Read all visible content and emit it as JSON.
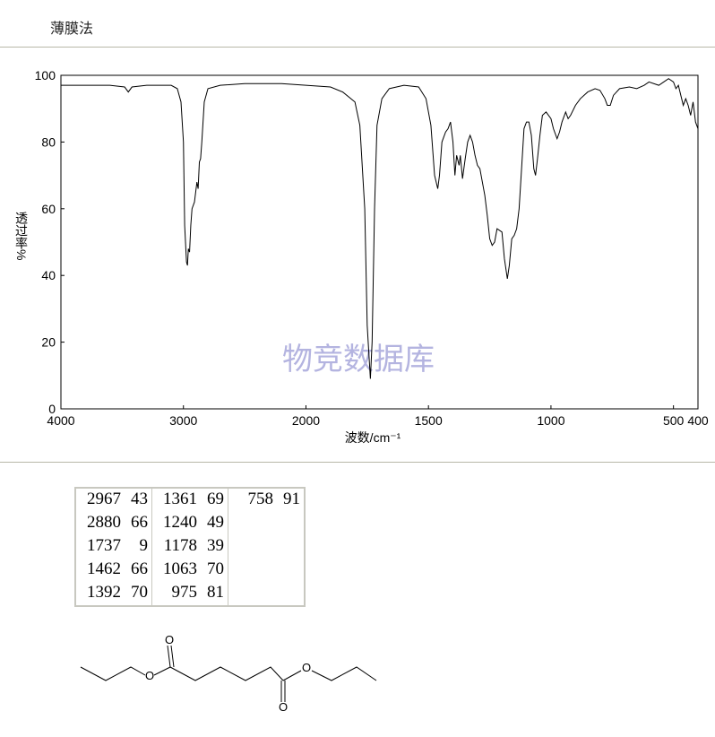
{
  "header": {
    "title": "薄膜法"
  },
  "chart_data": {
    "type": "line",
    "xlabel": "波数/cm⁻¹",
    "ylabel": "透过率%",
    "watermark": "物竞数据库",
    "xlim": [
      4000,
      400
    ],
    "x_scale_break": 2000,
    "xticks": [
      4000,
      3000,
      2000,
      1500,
      1000,
      500,
      400
    ],
    "ylim": [
      0,
      100
    ],
    "yticks": [
      0,
      20,
      40,
      60,
      80,
      100
    ],
    "color": "#000000",
    "grid": false,
    "x": [
      4000,
      3800,
      3600,
      3480,
      3450,
      3420,
      3300,
      3100,
      3050,
      3020,
      3000,
      2990,
      2975,
      2967,
      2960,
      2950,
      2940,
      2930,
      2910,
      2890,
      2880,
      2870,
      2860,
      2850,
      2830,
      2800,
      2700,
      2500,
      2200,
      2000,
      1900,
      1850,
      1800,
      1780,
      1760,
      1750,
      1737,
      1730,
      1720,
      1710,
      1690,
      1660,
      1600,
      1540,
      1510,
      1490,
      1475,
      1462,
      1455,
      1445,
      1430,
      1420,
      1410,
      1400,
      1392,
      1385,
      1375,
      1370,
      1361,
      1350,
      1340,
      1330,
      1320,
      1310,
      1300,
      1290,
      1280,
      1270,
      1260,
      1250,
      1240,
      1230,
      1220,
      1200,
      1190,
      1178,
      1170,
      1160,
      1150,
      1140,
      1130,
      1120,
      1110,
      1100,
      1090,
      1080,
      1070,
      1063,
      1055,
      1045,
      1035,
      1020,
      1000,
      990,
      975,
      965,
      955,
      940,
      930,
      920,
      900,
      880,
      850,
      820,
      800,
      780,
      770,
      758,
      745,
      720,
      680,
      650,
      620,
      600,
      560,
      540,
      520,
      500,
      490,
      480,
      470,
      460,
      450,
      440,
      430,
      420,
      410,
      400
    ],
    "values": [
      97,
      97,
      97,
      96.5,
      95,
      96.5,
      97,
      97,
      96,
      92,
      80,
      55,
      44,
      43,
      48,
      47,
      55,
      60,
      62,
      68,
      66,
      74,
      75,
      80,
      92,
      96,
      97,
      97.5,
      97.5,
      97,
      96.5,
      95,
      92,
      85,
      60,
      25,
      9,
      20,
      60,
      85,
      93,
      96,
      97,
      96.5,
      93,
      85,
      70,
      66,
      70,
      80,
      83,
      84,
      86,
      80,
      70,
      76,
      73,
      76,
      69,
      75,
      80,
      82,
      80,
      76,
      73,
      72,
      68,
      64,
      58,
      51,
      49,
      50,
      54,
      53,
      45,
      39,
      43,
      51,
      52,
      54,
      60,
      72,
      84,
      86,
      86,
      82,
      72,
      70,
      75,
      82,
      88,
      89,
      87,
      84,
      81,
      83,
      86,
      89,
      87,
      88,
      91,
      93,
      95,
      96,
      95.5,
      93,
      91,
      91,
      94,
      96,
      96.5,
      96,
      97,
      98,
      97,
      98,
      99,
      98,
      96,
      97,
      94,
      91,
      93,
      91,
      88,
      92,
      86,
      84
    ]
  },
  "table": {
    "columns": [
      [
        [
          2967,
          43
        ],
        [
          2880,
          66
        ],
        [
          1737,
          9
        ],
        [
          1462,
          66
        ],
        [
          1392,
          70
        ]
      ],
      [
        [
          1361,
          69
        ],
        [
          1240,
          49
        ],
        [
          1178,
          39
        ],
        [
          1063,
          70
        ],
        [
          975,
          81
        ]
      ],
      [
        [
          758,
          91
        ]
      ]
    ]
  },
  "structure": {
    "atoms": [
      "O",
      "O",
      "O",
      "O"
    ]
  }
}
